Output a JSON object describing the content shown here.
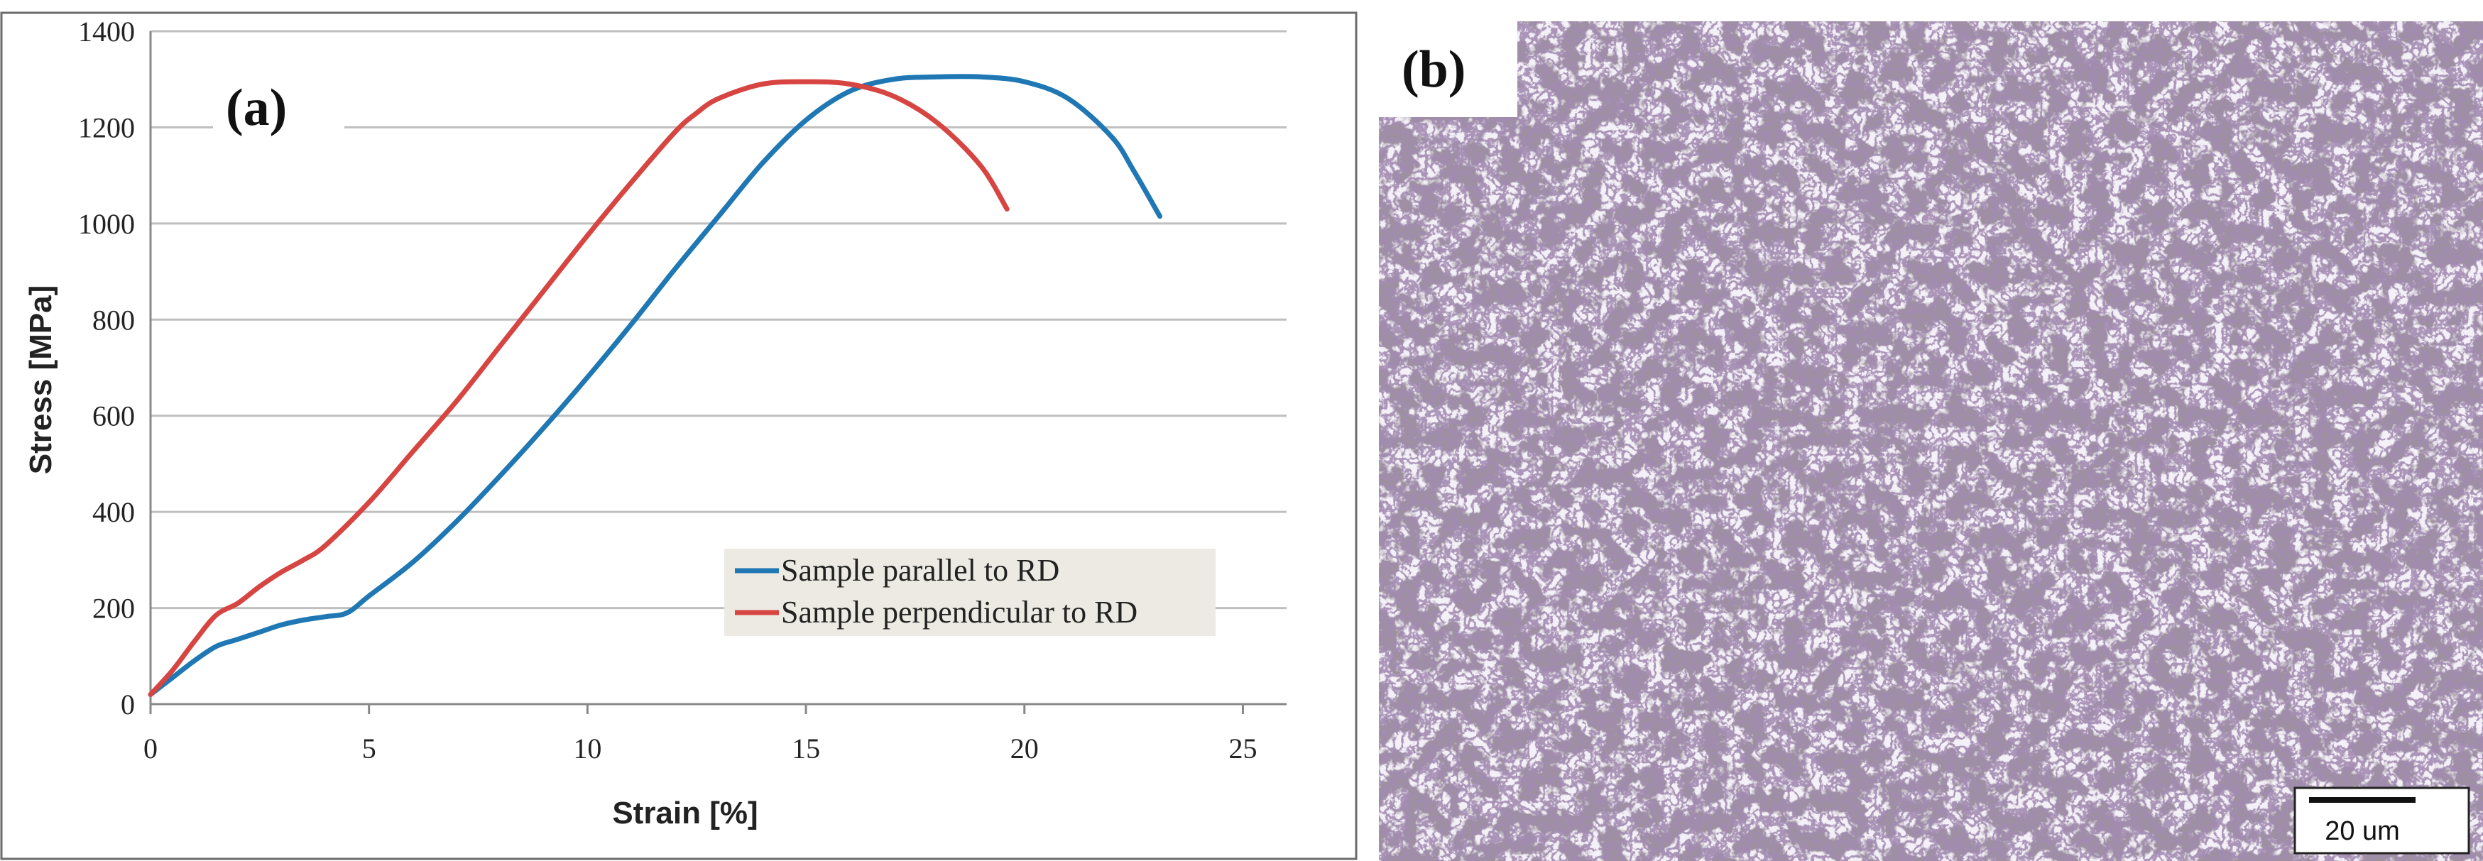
{
  "panel_a_label": "(a)",
  "panel_b_label": "(b)",
  "scale_bar_label": "20 um",
  "colors": {
    "parallel": "#1f77b4",
    "perpendicular": "#d64541",
    "grid": "#bfbfbf",
    "legend_bg": "#eceae2"
  },
  "chart_data": {
    "type": "line",
    "xlabel": "Strain [%]",
    "ylabel": "Stress [MPa]",
    "xlim": [
      0,
      26
    ],
    "ylim": [
      0,
      1400
    ],
    "xticks": [
      0,
      5,
      10,
      15,
      20,
      25
    ],
    "yticks": [
      0,
      200,
      400,
      600,
      800,
      1000,
      1200,
      1400
    ],
    "grid": "horizontal",
    "legend_position": "lower-right",
    "series": [
      {
        "name": "Sample parallel to RD",
        "x": [
          0,
          0.5,
          1.0,
          1.5,
          2.0,
          2.5,
          3.0,
          3.5,
          4.0,
          4.5,
          5,
          6,
          7,
          8,
          9,
          10,
          11,
          12,
          13,
          14,
          15,
          16,
          17,
          18,
          19,
          20,
          21,
          22,
          22.5,
          23.1
        ],
        "y": [
          20,
          55,
          90,
          120,
          135,
          150,
          165,
          175,
          182,
          190,
          225,
          295,
          380,
          475,
          575,
          680,
          790,
          905,
          1015,
          1125,
          1215,
          1275,
          1300,
          1305,
          1305,
          1295,
          1260,
          1180,
          1110,
          1015
        ]
      },
      {
        "name": "Sample perpendicular to RD",
        "x": [
          0,
          0.5,
          1.0,
          1.5,
          2.0,
          2.5,
          3.0,
          3.5,
          4.0,
          5,
          6,
          7,
          8,
          9,
          10,
          11,
          12,
          12.5,
          13,
          14,
          15,
          16,
          17,
          18,
          19,
          19.6
        ],
        "y": [
          20,
          70,
          130,
          185,
          210,
          245,
          275,
          300,
          330,
          420,
          525,
          630,
          745,
          860,
          975,
          1085,
          1190,
          1230,
          1260,
          1290,
          1295,
          1290,
          1265,
          1210,
          1120,
          1030
        ]
      }
    ]
  }
}
